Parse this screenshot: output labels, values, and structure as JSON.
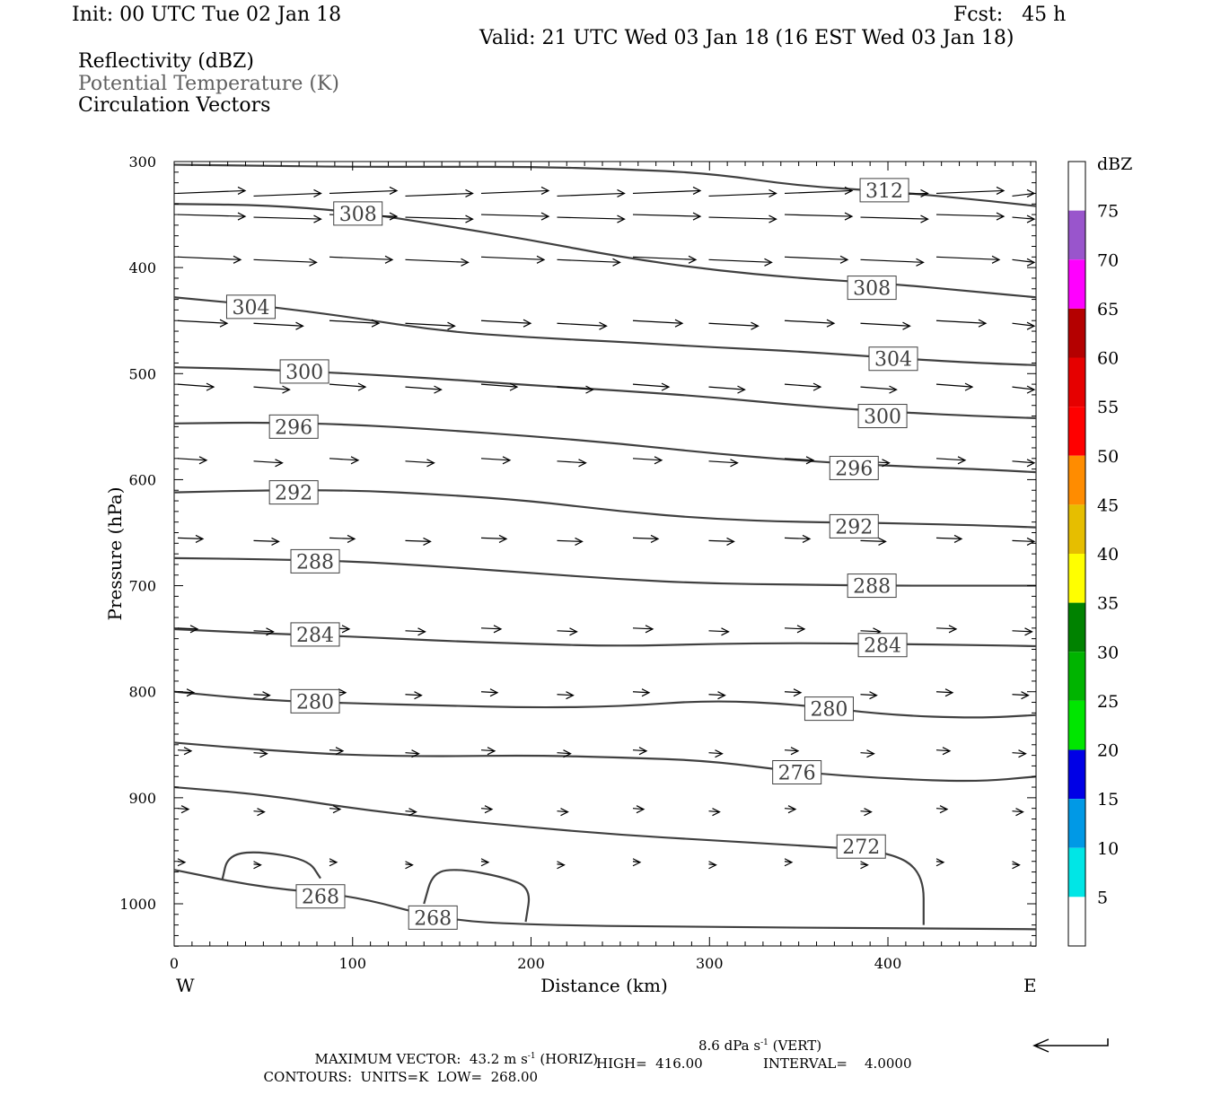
{
  "header": {
    "init": "Init: 00 UTC Tue 02 Jan 18",
    "fcst": "Fcst:   45 h",
    "valid": "Valid: 21 UTC Wed 03 Jan 18 (16 EST Wed 03 Jan 18)"
  },
  "legend_lines": [
    {
      "text": "Reflectivity (dBZ)",
      "color": "#000000"
    },
    {
      "text": "Potential Temperature (K)",
      "color": "#606060"
    },
    {
      "text": "Circulation Vectors",
      "color": "#000000"
    }
  ],
  "footer": {
    "line1": "MAXIMUM VECTOR:  43.2 m s",
    "line1_sup": "-1",
    "line1_b": " (HORIZ)",
    "line1_c": "8.6 dPa s",
    "line1_c_sup": "-1",
    "line1_d": " (VERT)",
    "line2_a": "CONTOURS:  UNITS=K  LOW=  268.00",
    "line2_b": "HIGH=  416.00",
    "line2_c": "INTERVAL=    4.0000"
  },
  "chart_data": {
    "type": "line",
    "title": "",
    "xlabel": "Distance (km)",
    "ylabel": "Pressure (hPa)",
    "xlim": [
      0,
      483
    ],
    "ylim": [
      1040,
      300
    ],
    "x_ticks": [
      0,
      100,
      200,
      300,
      400
    ],
    "y_ticks": [
      300,
      400,
      500,
      600,
      700,
      800,
      900,
      1000
    ],
    "x_end_labels": {
      "left": "W",
      "right": "E"
    },
    "colorbar": {
      "unit": "dBZ",
      "levels": [
        5,
        10,
        15,
        20,
        25,
        30,
        35,
        40,
        45,
        50,
        55,
        60,
        65,
        70,
        75
      ],
      "colors": [
        "#ffffff",
        "#00e6e6",
        "#0099e6",
        "#0000e6",
        "#00e600",
        "#00b400",
        "#008200",
        "#ffff00",
        "#e6be00",
        "#ff8c00",
        "#ff0000",
        "#e60000",
        "#b40000",
        "#ff00ff",
        "#9955cc",
        "#ffffff"
      ]
    },
    "series": [
      {
        "name": "312",
        "label_at": [
          398,
          327
        ],
        "points": [
          [
            0,
            303
          ],
          [
            50,
            304
          ],
          [
            100,
            305
          ],
          [
            150,
            305
          ],
          [
            200,
            305
          ],
          [
            250,
            307
          ],
          [
            300,
            311
          ],
          [
            350,
            323
          ],
          [
            400,
            328
          ],
          [
            450,
            336
          ],
          [
            483,
            342
          ]
        ]
      },
      {
        "name": "308",
        "label_at": [
          103,
          349
        ],
        "points": [
          [
            0,
            340
          ],
          [
            50,
            341
          ],
          [
            100,
            347
          ],
          [
            150,
            360
          ],
          [
            200,
            374
          ],
          [
            250,
            390
          ],
          [
            300,
            402
          ],
          [
            350,
            410
          ],
          [
            400,
            415
          ],
          [
            450,
            423
          ],
          [
            483,
            428
          ]
        ]
      },
      {
        "name": "308",
        "label_at": [
          391,
          419
        ],
        "points": []
      },
      {
        "name": "304",
        "label_at": [
          43,
          437
        ],
        "points": [
          [
            0,
            428
          ],
          [
            50,
            436
          ],
          [
            100,
            447
          ],
          [
            150,
            460
          ],
          [
            200,
            466
          ],
          [
            250,
            470
          ],
          [
            300,
            475
          ],
          [
            350,
            479
          ],
          [
            400,
            485
          ],
          [
            450,
            490
          ],
          [
            483,
            492
          ]
        ]
      },
      {
        "name": "304",
        "label_at": [
          403,
          486
        ],
        "points": []
      },
      {
        "name": "300",
        "label_at": [
          73,
          498
        ],
        "points": [
          [
            0,
            494
          ],
          [
            50,
            496
          ],
          [
            100,
            500
          ],
          [
            150,
            505
          ],
          [
            200,
            511
          ],
          [
            250,
            516
          ],
          [
            300,
            522
          ],
          [
            350,
            530
          ],
          [
            400,
            536
          ],
          [
            450,
            540
          ],
          [
            483,
            542
          ]
        ]
      },
      {
        "name": "300",
        "label_at": [
          397,
          540
        ],
        "points": []
      },
      {
        "name": "296",
        "label_at": [
          67,
          550
        ],
        "points": [
          [
            0,
            547
          ],
          [
            50,
            546
          ],
          [
            100,
            548
          ],
          [
            150,
            553
          ],
          [
            200,
            559
          ],
          [
            250,
            566
          ],
          [
            300,
            575
          ],
          [
            350,
            582
          ],
          [
            400,
            587
          ],
          [
            450,
            590
          ],
          [
            483,
            593
          ]
        ]
      },
      {
        "name": "296",
        "label_at": [
          381,
          589
        ],
        "points": []
      },
      {
        "name": "292",
        "label_at": [
          67,
          612
        ],
        "points": [
          [
            0,
            612
          ],
          [
            50,
            610
          ],
          [
            100,
            610
          ],
          [
            150,
            614
          ],
          [
            200,
            620
          ],
          [
            250,
            630
          ],
          [
            300,
            637
          ],
          [
            350,
            640
          ],
          [
            400,
            641
          ],
          [
            450,
            643
          ],
          [
            483,
            645
          ]
        ]
      },
      {
        "name": "292",
        "label_at": [
          381,
          644
        ],
        "points": []
      },
      {
        "name": "288",
        "label_at": [
          79,
          677
        ],
        "points": [
          [
            0,
            674
          ],
          [
            50,
            675
          ],
          [
            100,
            677
          ],
          [
            150,
            682
          ],
          [
            200,
            688
          ],
          [
            250,
            694
          ],
          [
            300,
            698
          ],
          [
            350,
            699
          ],
          [
            400,
            700
          ],
          [
            450,
            700
          ],
          [
            483,
            700
          ]
        ]
      },
      {
        "name": "288",
        "label_at": [
          391,
          700
        ],
        "points": []
      },
      {
        "name": "284",
        "label_at": [
          79,
          746
        ],
        "points": [
          [
            0,
            741
          ],
          [
            50,
            745
          ],
          [
            100,
            748
          ],
          [
            150,
            752
          ],
          [
            200,
            755
          ],
          [
            250,
            757
          ],
          [
            300,
            755
          ],
          [
            350,
            754
          ],
          [
            400,
            755
          ],
          [
            450,
            756
          ],
          [
            483,
            757
          ]
        ]
      },
      {
        "name": "284",
        "label_at": [
          397,
          756
        ],
        "points": []
      },
      {
        "name": "280",
        "label_at": [
          79,
          809
        ],
        "points": [
          [
            0,
            800
          ],
          [
            50,
            808
          ],
          [
            100,
            811
          ],
          [
            150,
            813
          ],
          [
            200,
            815
          ],
          [
            250,
            814
          ],
          [
            300,
            808
          ],
          [
            350,
            812
          ],
          [
            400,
            822
          ],
          [
            450,
            825
          ],
          [
            483,
            822
          ]
        ]
      },
      {
        "name": "280",
        "label_at": [
          367,
          816
        ],
        "points": []
      },
      {
        "name": "276",
        "label_at": [
          349,
          876
        ],
        "points": [
          [
            0,
            848
          ],
          [
            50,
            855
          ],
          [
            100,
            860
          ],
          [
            150,
            861
          ],
          [
            200,
            860
          ],
          [
            250,
            862
          ],
          [
            300,
            865
          ],
          [
            350,
            876
          ],
          [
            400,
            882
          ],
          [
            450,
            885
          ],
          [
            483,
            880
          ]
        ]
      },
      {
        "name": "272",
        "label_at": [
          385,
          946
        ],
        "points": [
          [
            0,
            890
          ],
          [
            50,
            897
          ],
          [
            100,
            910
          ],
          [
            150,
            920
          ],
          [
            200,
            928
          ],
          [
            250,
            935
          ],
          [
            300,
            940
          ],
          [
            350,
            945
          ],
          [
            400,
            950
          ],
          [
            420,
            970
          ],
          [
            420,
            1020
          ]
        ]
      },
      {
        "name": "268",
        "label_at": [
          82,
          993
        ],
        "points": [
          [
            0,
            968
          ],
          [
            50,
            985
          ],
          [
            100,
            992
          ],
          [
            150,
            1015
          ],
          [
            200,
            1020
          ],
          [
            300,
            1022
          ],
          [
            400,
            1023
          ],
          [
            483,
            1024
          ]
        ]
      },
      {
        "name": "268",
        "label_at": [
          145,
          1013
        ],
        "points": [
          [
            140,
            1000
          ],
          [
            145,
            970
          ],
          [
            160,
            967
          ],
          [
            185,
            975
          ],
          [
            200,
            985
          ],
          [
            197,
            1017
          ]
        ]
      },
      {
        "name": "268",
        "label_at": [
          0,
          0
        ],
        "points": [
          [
            27,
            977
          ],
          [
            30,
            955
          ],
          [
            45,
            950
          ],
          [
            75,
            958
          ],
          [
            82,
            976
          ]
        ]
      }
    ]
  }
}
